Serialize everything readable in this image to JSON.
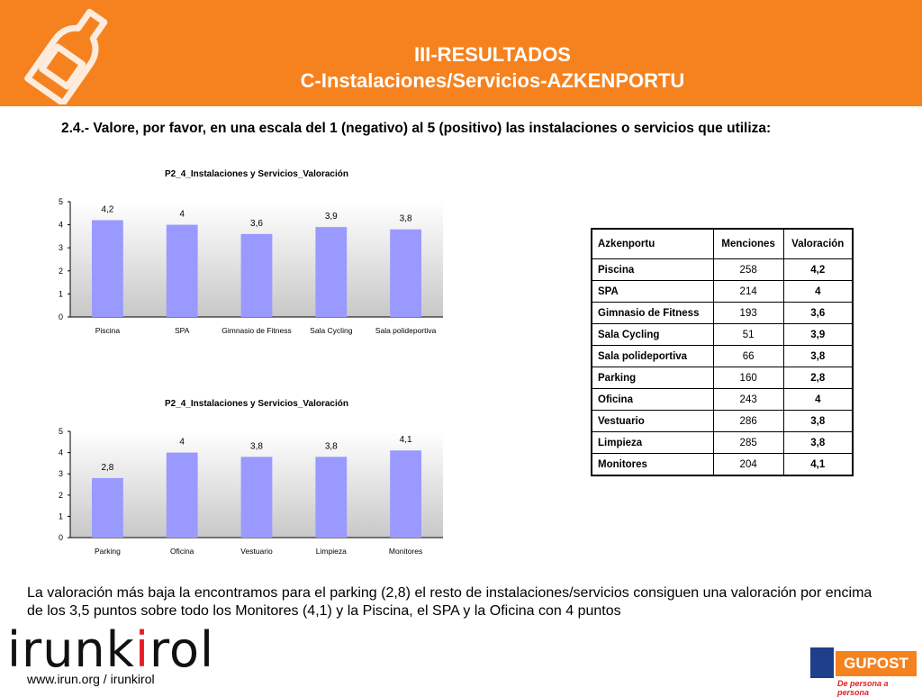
{
  "header": {
    "title_line1": "III-RESULTADOS",
    "title_line2": "C-Instalaciones/Servicios-AZKENPORTU",
    "icon": "bottle-icon",
    "bg_color": "#f5821f"
  },
  "question": "2.4.- Valore, por favor, en una escala del 1 (negativo) al 5 (positivo) las instalaciones o servicios que utiliza:",
  "chart_data": [
    {
      "type": "bar",
      "title": "P2_4_Instalaciones y Servicios_Valoración",
      "categories": [
        "Piscina",
        "SPA",
        "Gimnasio de Fitness",
        "Sala Cycling",
        "Sala polideportiva"
      ],
      "values": [
        4.2,
        4,
        3.6,
        3.9,
        3.8
      ],
      "data_labels": [
        "4,2",
        "4",
        "3,6",
        "3,9",
        "3,8"
      ],
      "yticks": [
        "0",
        "1",
        "2",
        "3",
        "4",
        "5"
      ],
      "ylim": [
        0,
        5
      ],
      "bar_color": "#9999ff",
      "grid": false
    },
    {
      "type": "bar",
      "title": "P2_4_Instalaciones y Servicios_Valoración",
      "categories": [
        "Parking",
        "Oficina",
        "Vestuario",
        "Limpieza",
        "Monitores"
      ],
      "values": [
        2.8,
        4,
        3.8,
        3.8,
        4.1
      ],
      "data_labels": [
        "2,8",
        "4",
        "3,8",
        "3,8",
        "4,1"
      ],
      "yticks": [
        "0",
        "1",
        "2",
        "3",
        "4",
        "5"
      ],
      "ylim": [
        0,
        5
      ],
      "bar_color": "#9999ff",
      "grid": false
    }
  ],
  "table": {
    "headers": [
      "Azkenportu",
      "Menciones",
      "Valoración"
    ],
    "rows": [
      [
        "Piscina",
        "258",
        "4,2"
      ],
      [
        "SPA",
        "214",
        "4"
      ],
      [
        "Gimnasio de Fitness",
        "193",
        "3,6"
      ],
      [
        "Sala Cycling",
        "51",
        "3,9"
      ],
      [
        "Sala polideportiva",
        "66",
        "3,8"
      ],
      [
        "Parking",
        "160",
        "2,8"
      ],
      [
        "Oficina",
        "243",
        "4"
      ],
      [
        "Vestuario",
        "286",
        "3,8"
      ],
      [
        "Limpieza",
        "285",
        "3,8"
      ],
      [
        "Monitores",
        "204",
        "4,1"
      ]
    ]
  },
  "summary": "La valoración más baja la encontramos para el parking (2,8) el resto de instalaciones/servicios consiguen una valoración por encima de los 3,5 puntos sobre todo los Monitores (4,1) y la Piscina, el SPA y la Oficina con 4 puntos",
  "footer": {
    "logo_part1": "irunk",
    "logo_accent": "i",
    "logo_part2": "rol",
    "website": "www.irun.org / irunkirol",
    "partner_name": "GUPOST",
    "partner_slogan": "De persona a persona"
  }
}
